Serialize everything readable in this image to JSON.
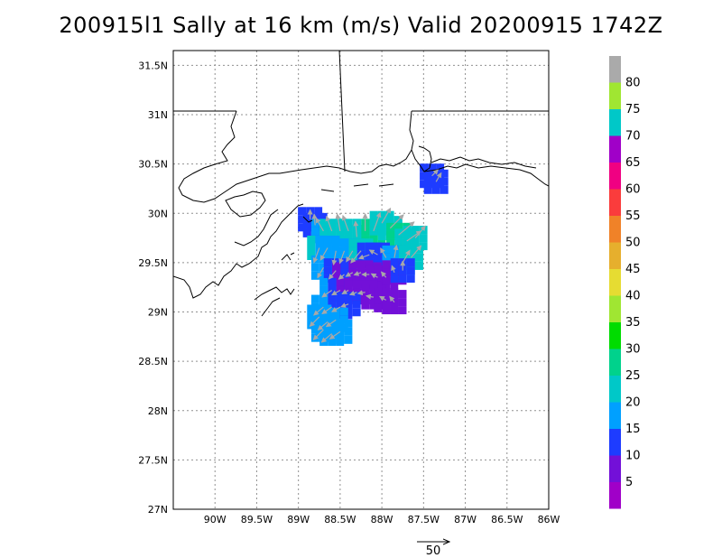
{
  "title": "200915l1 Sally at 16 km (m/s) Valid 20200915 1742Z",
  "map": {
    "lon_range": [
      -90.5,
      -86.0
    ],
    "lat_range": [
      27.0,
      31.65
    ],
    "lon_ticks": [
      {
        "value": -90.0,
        "label": "90W"
      },
      {
        "value": -89.5,
        "label": "89.5W"
      },
      {
        "value": -89.0,
        "label": "89W"
      },
      {
        "value": -88.5,
        "label": "88.5W"
      },
      {
        "value": -88.0,
        "label": "88W"
      },
      {
        "value": -87.5,
        "label": "87.5W"
      },
      {
        "value": -87.0,
        "label": "87W"
      },
      {
        "value": -86.5,
        "label": "86.5W"
      },
      {
        "value": -86.0,
        "label": "86W"
      }
    ],
    "lat_ticks": [
      {
        "value": 27.0,
        "label": "27N"
      },
      {
        "value": 27.5,
        "label": "27.5N"
      },
      {
        "value": 28.0,
        "label": "28N"
      },
      {
        "value": 28.5,
        "label": "28.5N"
      },
      {
        "value": 29.0,
        "label": "29N"
      },
      {
        "value": 29.5,
        "label": "29.5N"
      },
      {
        "value": 30.0,
        "label": "30N"
      },
      {
        "value": 30.5,
        "label": "30.5N"
      },
      {
        "value": 31.0,
        "label": "31N"
      },
      {
        "value": 31.5,
        "label": "31.5N"
      }
    ],
    "grid": "dotted",
    "colors": {
      "coast": "#000000",
      "vector": "#a8a8a8"
    }
  },
  "colorbar": {
    "levels": [
      {
        "label": "5",
        "color": "#a000c8"
      },
      {
        "label": "10",
        "color": "#7310d8"
      },
      {
        "label": "15",
        "color": "#1e3cff"
      },
      {
        "label": "20",
        "color": "#00a0ff"
      },
      {
        "label": "25",
        "color": "#00c8c8"
      },
      {
        "label": "30",
        "color": "#00d28c"
      },
      {
        "label": "35",
        "color": "#00dc00"
      },
      {
        "label": "40",
        "color": "#a0e632"
      },
      {
        "label": "45",
        "color": "#e6dc32"
      },
      {
        "label": "50",
        "color": "#e6af2d"
      },
      {
        "label": "55",
        "color": "#f08228"
      },
      {
        "label": "60",
        "color": "#fa3c3c"
      },
      {
        "label": "65",
        "color": "#f00082"
      },
      {
        "label": "70",
        "color": "#a000c8"
      },
      {
        "label": "75",
        "color": "#00c8c8"
      },
      {
        "label": "80",
        "color": "#a0e632"
      }
    ],
    "top_color": "#aaaaaa"
  },
  "reference_vector": {
    "label": "50",
    "unit": "m/s"
  },
  "wind_field": [
    {
      "lon": -88.86,
      "lat": 29.94,
      "speed": 12,
      "dir": 90
    },
    {
      "lon": -88.8,
      "lat": 29.88,
      "speed": 14,
      "dir": 95
    },
    {
      "lon": -88.7,
      "lat": 29.82,
      "speed": 19,
      "dir": 120
    },
    {
      "lon": -88.6,
      "lat": 29.82,
      "speed": 20,
      "dir": 110
    },
    {
      "lon": -88.5,
      "lat": 29.82,
      "speed": 22,
      "dir": 100
    },
    {
      "lon": -88.4,
      "lat": 29.82,
      "speed": 21,
      "dir": 110
    },
    {
      "lon": -88.3,
      "lat": 29.76,
      "speed": 20,
      "dir": 95
    },
    {
      "lon": -88.2,
      "lat": 29.82,
      "speed": 22,
      "dir": 90
    },
    {
      "lon": -88.1,
      "lat": 29.82,
      "speed": 25,
      "dir": 70
    },
    {
      "lon": -88.0,
      "lat": 29.9,
      "speed": 22,
      "dir": 60
    },
    {
      "lon": -87.9,
      "lat": 29.85,
      "speed": 24,
      "dir": 45
    },
    {
      "lon": -87.8,
      "lat": 29.78,
      "speed": 26,
      "dir": 40
    },
    {
      "lon": -87.7,
      "lat": 29.72,
      "speed": 22,
      "dir": 35
    },
    {
      "lon": -87.6,
      "lat": 29.75,
      "speed": 20,
      "dir": 50
    },
    {
      "lon": -88.75,
      "lat": 29.65,
      "speed": 20,
      "dir": 250
    },
    {
      "lon": -88.65,
      "lat": 29.65,
      "speed": 18,
      "dir": 240
    },
    {
      "lon": -88.55,
      "lat": 29.62,
      "speed": 18,
      "dir": 260
    },
    {
      "lon": -88.45,
      "lat": 29.62,
      "speed": 17,
      "dir": 250
    },
    {
      "lon": -88.35,
      "lat": 29.62,
      "speed": 16,
      "dir": 240
    },
    {
      "lon": -88.25,
      "lat": 29.62,
      "speed": 20,
      "dir": 230
    },
    {
      "lon": -88.15,
      "lat": 29.58,
      "speed": 14,
      "dir": 200
    },
    {
      "lon": -88.05,
      "lat": 29.58,
      "speed": 12,
      "dir": 150
    },
    {
      "lon": -87.95,
      "lat": 29.55,
      "speed": 14,
      "dir": 120
    },
    {
      "lon": -87.85,
      "lat": 29.55,
      "speed": 16,
      "dir": 80
    },
    {
      "lon": -87.75,
      "lat": 29.5,
      "speed": 18,
      "dir": 60
    },
    {
      "lon": -87.65,
      "lat": 29.55,
      "speed": 20,
      "dir": 50
    },
    {
      "lon": -88.7,
      "lat": 29.45,
      "speed": 15,
      "dir": 240
    },
    {
      "lon": -88.55,
      "lat": 29.42,
      "speed": 14,
      "dir": 230
    },
    {
      "lon": -88.45,
      "lat": 29.38,
      "speed": 8,
      "dir": 220
    },
    {
      "lon": -88.35,
      "lat": 29.4,
      "speed": 10,
      "dir": 210
    },
    {
      "lon": -88.25,
      "lat": 29.4,
      "speed": 7,
      "dir": 200
    },
    {
      "lon": -88.15,
      "lat": 29.38,
      "speed": 6,
      "dir": 180
    },
    {
      "lon": -88.05,
      "lat": 29.35,
      "speed": 6,
      "dir": 150
    },
    {
      "lon": -87.95,
      "lat": 29.35,
      "speed": 7,
      "dir": 130
    },
    {
      "lon": -87.85,
      "lat": 29.4,
      "speed": 9,
      "dir": 110
    },
    {
      "lon": -87.75,
      "lat": 29.42,
      "speed": 12,
      "dir": 90
    },
    {
      "lon": -88.6,
      "lat": 29.22,
      "speed": 15,
      "dir": 215
    },
    {
      "lon": -88.5,
      "lat": 29.22,
      "speed": 12,
      "dir": 210
    },
    {
      "lon": -88.4,
      "lat": 29.22,
      "speed": 8,
      "dir": 210
    },
    {
      "lon": -88.3,
      "lat": 29.2,
      "speed": 6,
      "dir": 200
    },
    {
      "lon": -88.2,
      "lat": 29.2,
      "speed": 5,
      "dir": 190
    },
    {
      "lon": -88.1,
      "lat": 29.15,
      "speed": 5,
      "dir": 170
    },
    {
      "lon": -87.95,
      "lat": 29.12,
      "speed": 6,
      "dir": 150
    },
    {
      "lon": -87.85,
      "lat": 29.1,
      "speed": 8,
      "dir": 130
    },
    {
      "lon": -88.7,
      "lat": 29.05,
      "speed": 16,
      "dir": 220
    },
    {
      "lon": -88.6,
      "lat": 29.05,
      "speed": 15,
      "dir": 215
    },
    {
      "lon": -88.5,
      "lat": 29.05,
      "speed": 12,
      "dir": 210
    },
    {
      "lon": -88.4,
      "lat": 29.08,
      "speed": 10,
      "dir": 200
    },
    {
      "lon": -88.75,
      "lat": 28.95,
      "speed": 17,
      "dir": 225
    },
    {
      "lon": -88.65,
      "lat": 28.9,
      "speed": 16,
      "dir": 220
    },
    {
      "lon": -88.55,
      "lat": 28.92,
      "speed": 15,
      "dir": 215
    },
    {
      "lon": -88.7,
      "lat": 28.82,
      "speed": 18,
      "dir": 225
    },
    {
      "lon": -88.6,
      "lat": 28.78,
      "speed": 17,
      "dir": 220
    },
    {
      "lon": -88.5,
      "lat": 28.8,
      "speed": 16,
      "dir": 215
    },
    {
      "lon": -87.4,
      "lat": 30.38,
      "speed": 11,
      "dir": 45
    },
    {
      "lon": -87.35,
      "lat": 30.32,
      "speed": 13,
      "dir": 60
    }
  ]
}
